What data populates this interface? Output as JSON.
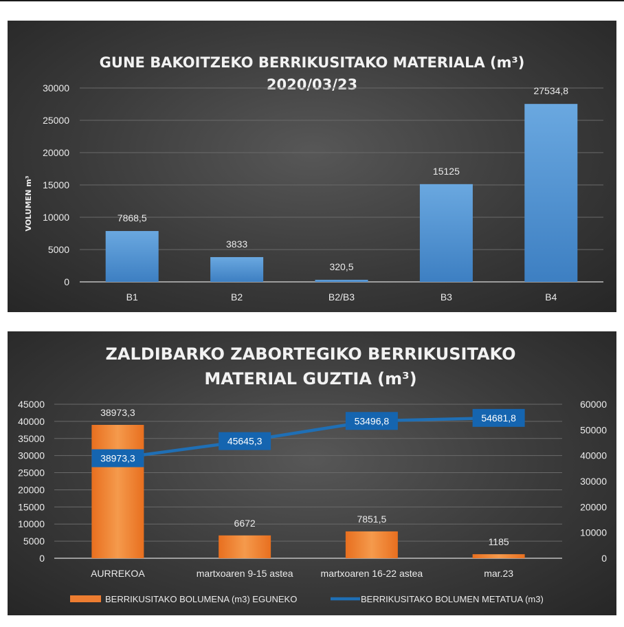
{
  "chart_data": [
    {
      "type": "bar",
      "title": "GUNE BAKOITZEKO BERRIKUSITAKO MATERIALA (m³)",
      "subtitle": "2020/03/23",
      "ylabel": "VOLUMEN  m³",
      "xlabel": "",
      "categories": [
        "B1",
        "B2",
        "B2/B3",
        "B3",
        "B4"
      ],
      "values": [
        7868.5,
        3833,
        320.5,
        15125,
        27534.8
      ],
      "data_labels": [
        "7868,5",
        "3833",
        "320,5",
        "15125",
        "27534,8"
      ],
      "ylim": [
        0,
        30000
      ],
      "yticks": [
        0,
        5000,
        10000,
        15000,
        20000,
        25000,
        30000
      ],
      "grid": true,
      "colors": {
        "bar": "#5b9bd5",
        "background": "#404040"
      }
    },
    {
      "type": "bar",
      "title": "ZALDIBARKO ZABORTEGIKO BERRIKUSITAKO",
      "subtitle": "MATERIAL GUZTIA (m³)",
      "categories": [
        "AURREKOA",
        "martxoaren 9-15 astea",
        "martxoaren 16-22 astea",
        "mar.23"
      ],
      "series": [
        {
          "name": "BERRIKUSITAKO BOLUMENA (m3) EGUNEKO",
          "type": "bar",
          "axis": "left",
          "values": [
            38973.3,
            6672,
            7851.5,
            1185
          ],
          "data_labels": [
            "38973,3",
            "6672",
            "7851,5",
            "1185"
          ],
          "color": "#ed7d31"
        },
        {
          "name": "BERRIKUSITAKO BOLUMEN METATUA (m3)",
          "type": "line",
          "axis": "right",
          "values": [
            38973.3,
            45645.3,
            53496.8,
            54681.8
          ],
          "data_labels": [
            "38973,3",
            "45645,3",
            "53496,8",
            "54681,8"
          ],
          "color": "#1f6fb5"
        }
      ],
      "ylim": [
        0,
        45000
      ],
      "yticks": [
        0,
        5000,
        10000,
        15000,
        20000,
        25000,
        30000,
        35000,
        40000,
        45000
      ],
      "y2lim": [
        0,
        60000
      ],
      "y2ticks": [
        0,
        10000,
        20000,
        30000,
        40000,
        50000,
        60000
      ],
      "grid": true,
      "legend": "bottom"
    }
  ]
}
